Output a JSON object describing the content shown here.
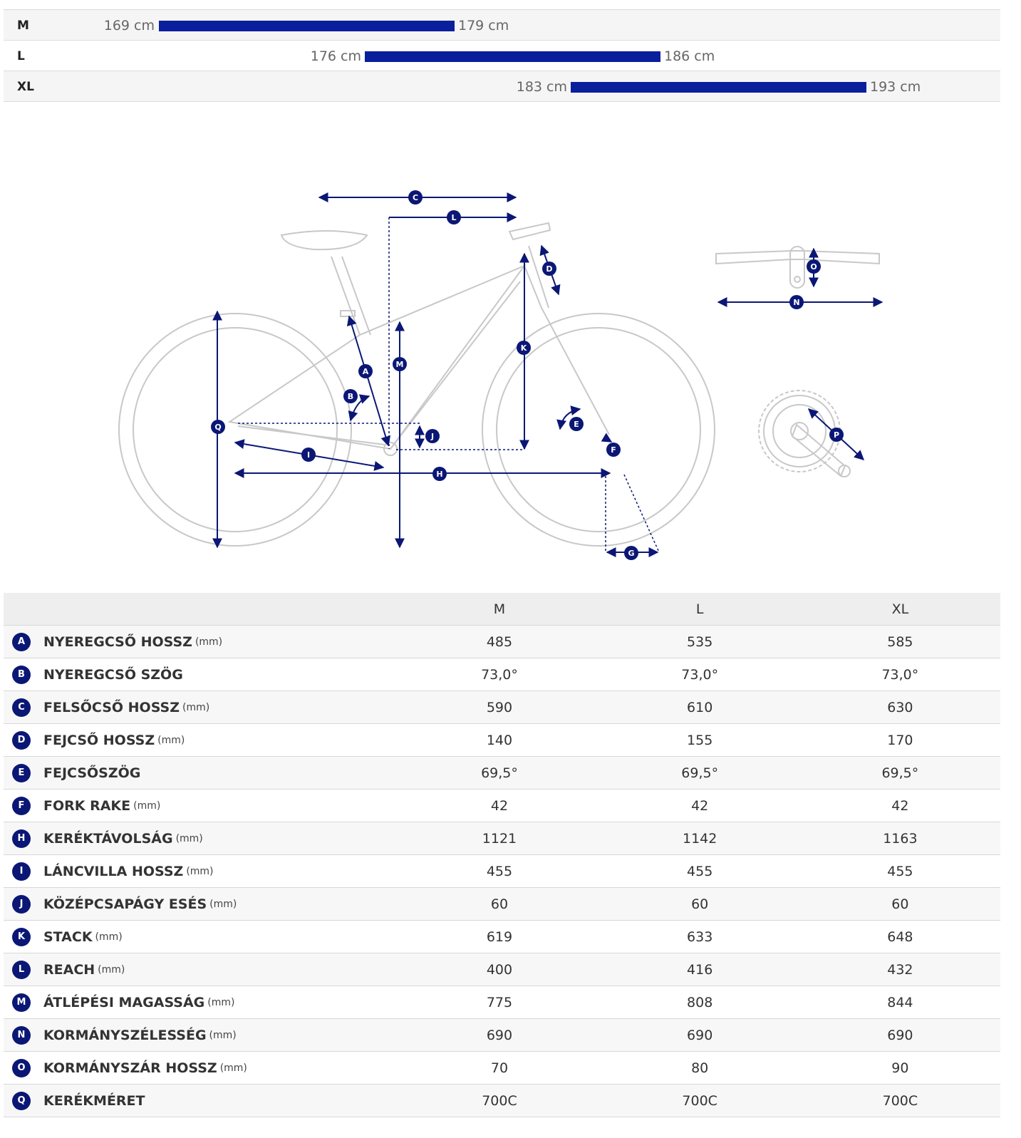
{
  "size_ranges": [
    {
      "size": "M",
      "min": "169 cm",
      "max": "179 cm"
    },
    {
      "size": "L",
      "min": "176 cm",
      "max": "186 cm"
    },
    {
      "size": "XL",
      "min": "183 cm",
      "max": "193 cm"
    }
  ],
  "colors": {
    "accent": "#0a1f9c",
    "badge": "#0b1775",
    "frame_line": "#c8c8c8"
  },
  "diagram_labels": [
    "A",
    "B",
    "C",
    "D",
    "E",
    "F",
    "G",
    "H",
    "I",
    "J",
    "K",
    "L",
    "M",
    "N",
    "O",
    "P",
    "Q"
  ],
  "table": {
    "columns": [
      "M",
      "L",
      "XL"
    ],
    "rows": [
      {
        "key": "A",
        "name": "NYEREGCSŐ HOSSZ",
        "unit": "(mm)",
        "values": [
          "485",
          "535",
          "585"
        ]
      },
      {
        "key": "B",
        "name": "NYEREGCSŐ SZÖG",
        "unit": "",
        "values": [
          "73,0°",
          "73,0°",
          "73,0°"
        ]
      },
      {
        "key": "C",
        "name": "FELSŐCSŐ HOSSZ",
        "unit": "(mm)",
        "values": [
          "590",
          "610",
          "630"
        ]
      },
      {
        "key": "D",
        "name": "FEJCSŐ HOSSZ",
        "unit": "(mm)",
        "values": [
          "140",
          "155",
          "170"
        ]
      },
      {
        "key": "E",
        "name": "FEJCSŐSZÖG",
        "unit": "",
        "values": [
          "69,5°",
          "69,5°",
          "69,5°"
        ]
      },
      {
        "key": "F",
        "name": "FORK RAKE",
        "unit": "(mm)",
        "values": [
          "42",
          "42",
          "42"
        ]
      },
      {
        "key": "H",
        "name": "KERÉKTÁVOLSÁG",
        "unit": "(mm)",
        "values": [
          "1121",
          "1142",
          "1163"
        ]
      },
      {
        "key": "I",
        "name": "LÁNCVILLA HOSSZ",
        "unit": "(mm)",
        "values": [
          "455",
          "455",
          "455"
        ]
      },
      {
        "key": "J",
        "name": "KÖZÉPCSAPÁGY ESÉS",
        "unit": "(mm)",
        "values": [
          "60",
          "60",
          "60"
        ]
      },
      {
        "key": "K",
        "name": "STACK",
        "unit": "(mm)",
        "values": [
          "619",
          "633",
          "648"
        ]
      },
      {
        "key": "L",
        "name": "REACH",
        "unit": "(mm)",
        "values": [
          "400",
          "416",
          "432"
        ]
      },
      {
        "key": "M",
        "name": "ÁTLÉPÉSI MAGASSÁG",
        "unit": "(mm)",
        "values": [
          "775",
          "808",
          "844"
        ]
      },
      {
        "key": "N",
        "name": "KORMÁNYSZÉLESSÉG",
        "unit": "(mm)",
        "values": [
          "690",
          "690",
          "690"
        ]
      },
      {
        "key": "O",
        "name": "KORMÁNYSZÁR HOSSZ",
        "unit": "(mm)",
        "values": [
          "70",
          "80",
          "90"
        ]
      },
      {
        "key": "Q",
        "name": "KERÉKMÉRET",
        "unit": "",
        "values": [
          "700C",
          "700C",
          "700C"
        ]
      }
    ]
  }
}
